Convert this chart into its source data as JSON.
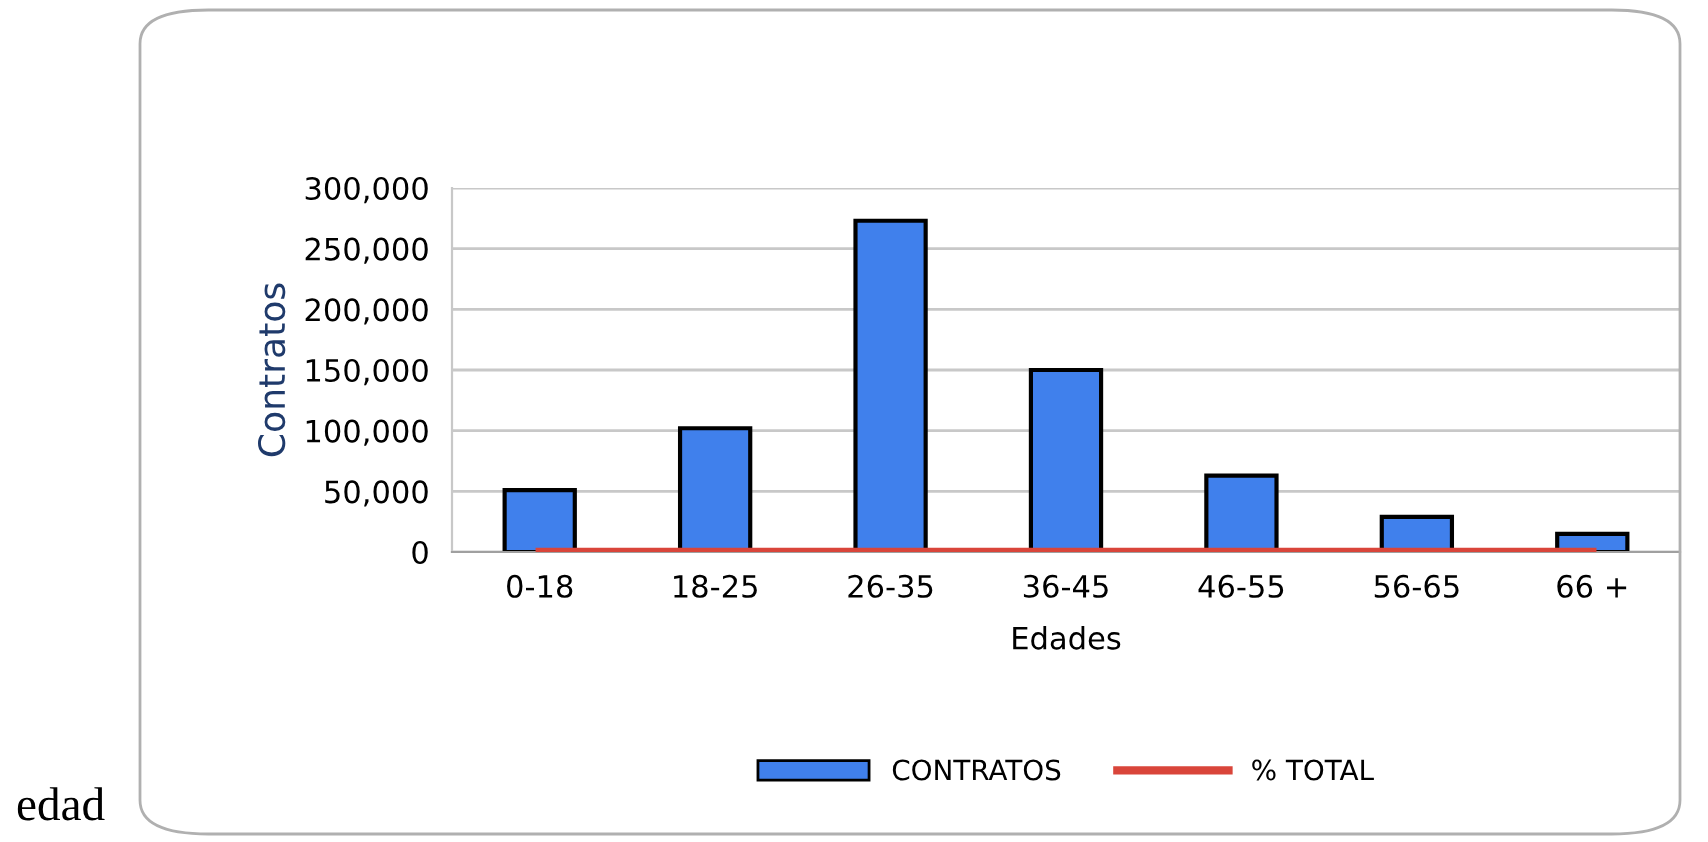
{
  "chart_data": {
    "type": "bar",
    "xlabel": "Edades",
    "ylabel": "Contratos",
    "categories": [
      "0-18",
      "18-25",
      "26-35",
      "36-45",
      "46-55",
      "56-65",
      "66 +"
    ],
    "series": [
      {
        "name": "CONTRATOS",
        "color": "#4080ec",
        "values": [
          51000,
          102000,
          273000,
          150000,
          63000,
          29000,
          15000
        ]
      },
      {
        "name": "% TOTAL",
        "type": "line",
        "color": "#d9453a",
        "values": [
          0,
          0,
          0,
          0,
          0,
          0,
          0
        ]
      }
    ],
    "ylim": [
      0,
      300000
    ],
    "yticks": [
      {
        "value": 0,
        "label": "0"
      },
      {
        "value": 50000,
        "label": "50,000"
      },
      {
        "value": 100000,
        "label": "100,000"
      },
      {
        "value": 150000,
        "label": "150,000"
      },
      {
        "value": 200000,
        "label": "200,000"
      },
      {
        "value": 250000,
        "label": "250,000"
      },
      {
        "value": 300000,
        "label": "300,000"
      }
    ],
    "grid": "y",
    "legend": "bottom",
    "annotations": [
      "edad"
    ]
  }
}
